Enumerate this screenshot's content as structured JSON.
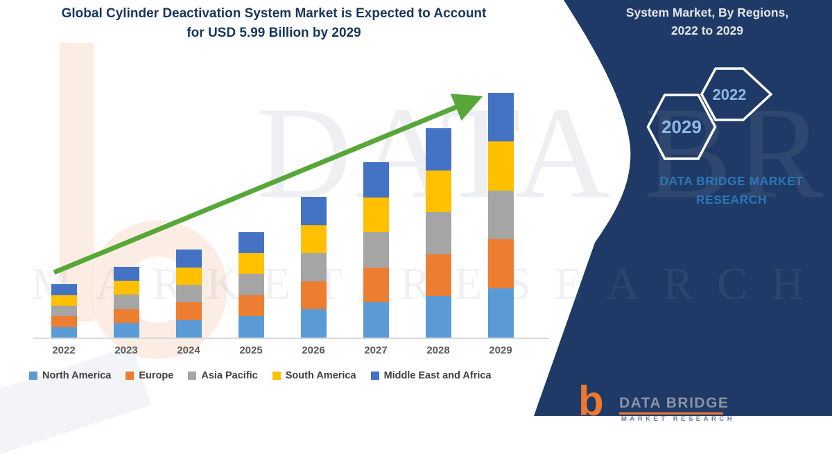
{
  "title": {
    "text": "Global Cylinder Deactivation System Market is Expected to Account for USD 5.99 Billion by 2029"
  },
  "side_panel": {
    "heading_line1": "System Market, By Regions,",
    "heading_line2": "2022 to 2029",
    "hexagon_back_label": "2029",
    "hexagon_front_label": "2022",
    "brand_line1": "DATA BRIDGE MARKET",
    "brand_line2": "RESEARCH",
    "bg_color": "#1f3a66",
    "brand_color": "#2e75b6",
    "hexagon_text_color": "#8fb9e4",
    "heading_color": "#e3e5ea"
  },
  "watermark": {
    "line1": "DATA BRIDGE",
    "line2": "MARKET RESEARCH"
  },
  "footer_logo": {
    "glyph": "b",
    "brand": "DATA BRIDGE",
    "sub": "MARKET RESEARCH",
    "accent_color": "#f0772e",
    "text_color": "#8a93a6"
  },
  "chart_data": {
    "type": "bar",
    "stacked": true,
    "title": "Global Cylinder Deactivation System Market is Expected to Account for USD 5.99 Billion by 2029",
    "unit": "USD Billion",
    "categories": [
      "2022",
      "2023",
      "2024",
      "2025",
      "2026",
      "2027",
      "2028",
      "2029"
    ],
    "totals": [
      1.31,
      1.73,
      2.15,
      2.58,
      3.44,
      4.29,
      5.12,
      5.99
    ],
    "series": [
      {
        "name": "North America",
        "color": "#5B9BD5",
        "values": [
          0.26,
          0.35,
          0.43,
          0.52,
          0.69,
          0.86,
          1.02,
          1.2
        ]
      },
      {
        "name": "Europe",
        "color": "#ED7D31",
        "values": [
          0.26,
          0.35,
          0.43,
          0.52,
          0.69,
          0.86,
          1.02,
          1.2
        ]
      },
      {
        "name": "Asia Pacific",
        "color": "#A5A5A5",
        "values": [
          0.26,
          0.35,
          0.43,
          0.52,
          0.69,
          0.86,
          1.02,
          1.2
        ]
      },
      {
        "name": "South America",
        "color": "#FFC000",
        "values": [
          0.26,
          0.34,
          0.43,
          0.51,
          0.68,
          0.85,
          1.03,
          1.2
        ]
      },
      {
        "name": "Middle East and Africa",
        "color": "#4472C4",
        "values": [
          0.27,
          0.34,
          0.43,
          0.51,
          0.69,
          0.86,
          1.03,
          1.19
        ]
      }
    ],
    "xlabel": "",
    "ylabel": "",
    "ylim": [
      0,
      6.4
    ],
    "gridlines": false,
    "y_axis_visible": false,
    "legend_position": "bottom",
    "trend_arrow": true,
    "trend_arrow_color": "#56a738",
    "axis_line_color": "#d9d9d9",
    "x_tick_color": "#595959",
    "legend_text_color": "#3f3f3f"
  }
}
